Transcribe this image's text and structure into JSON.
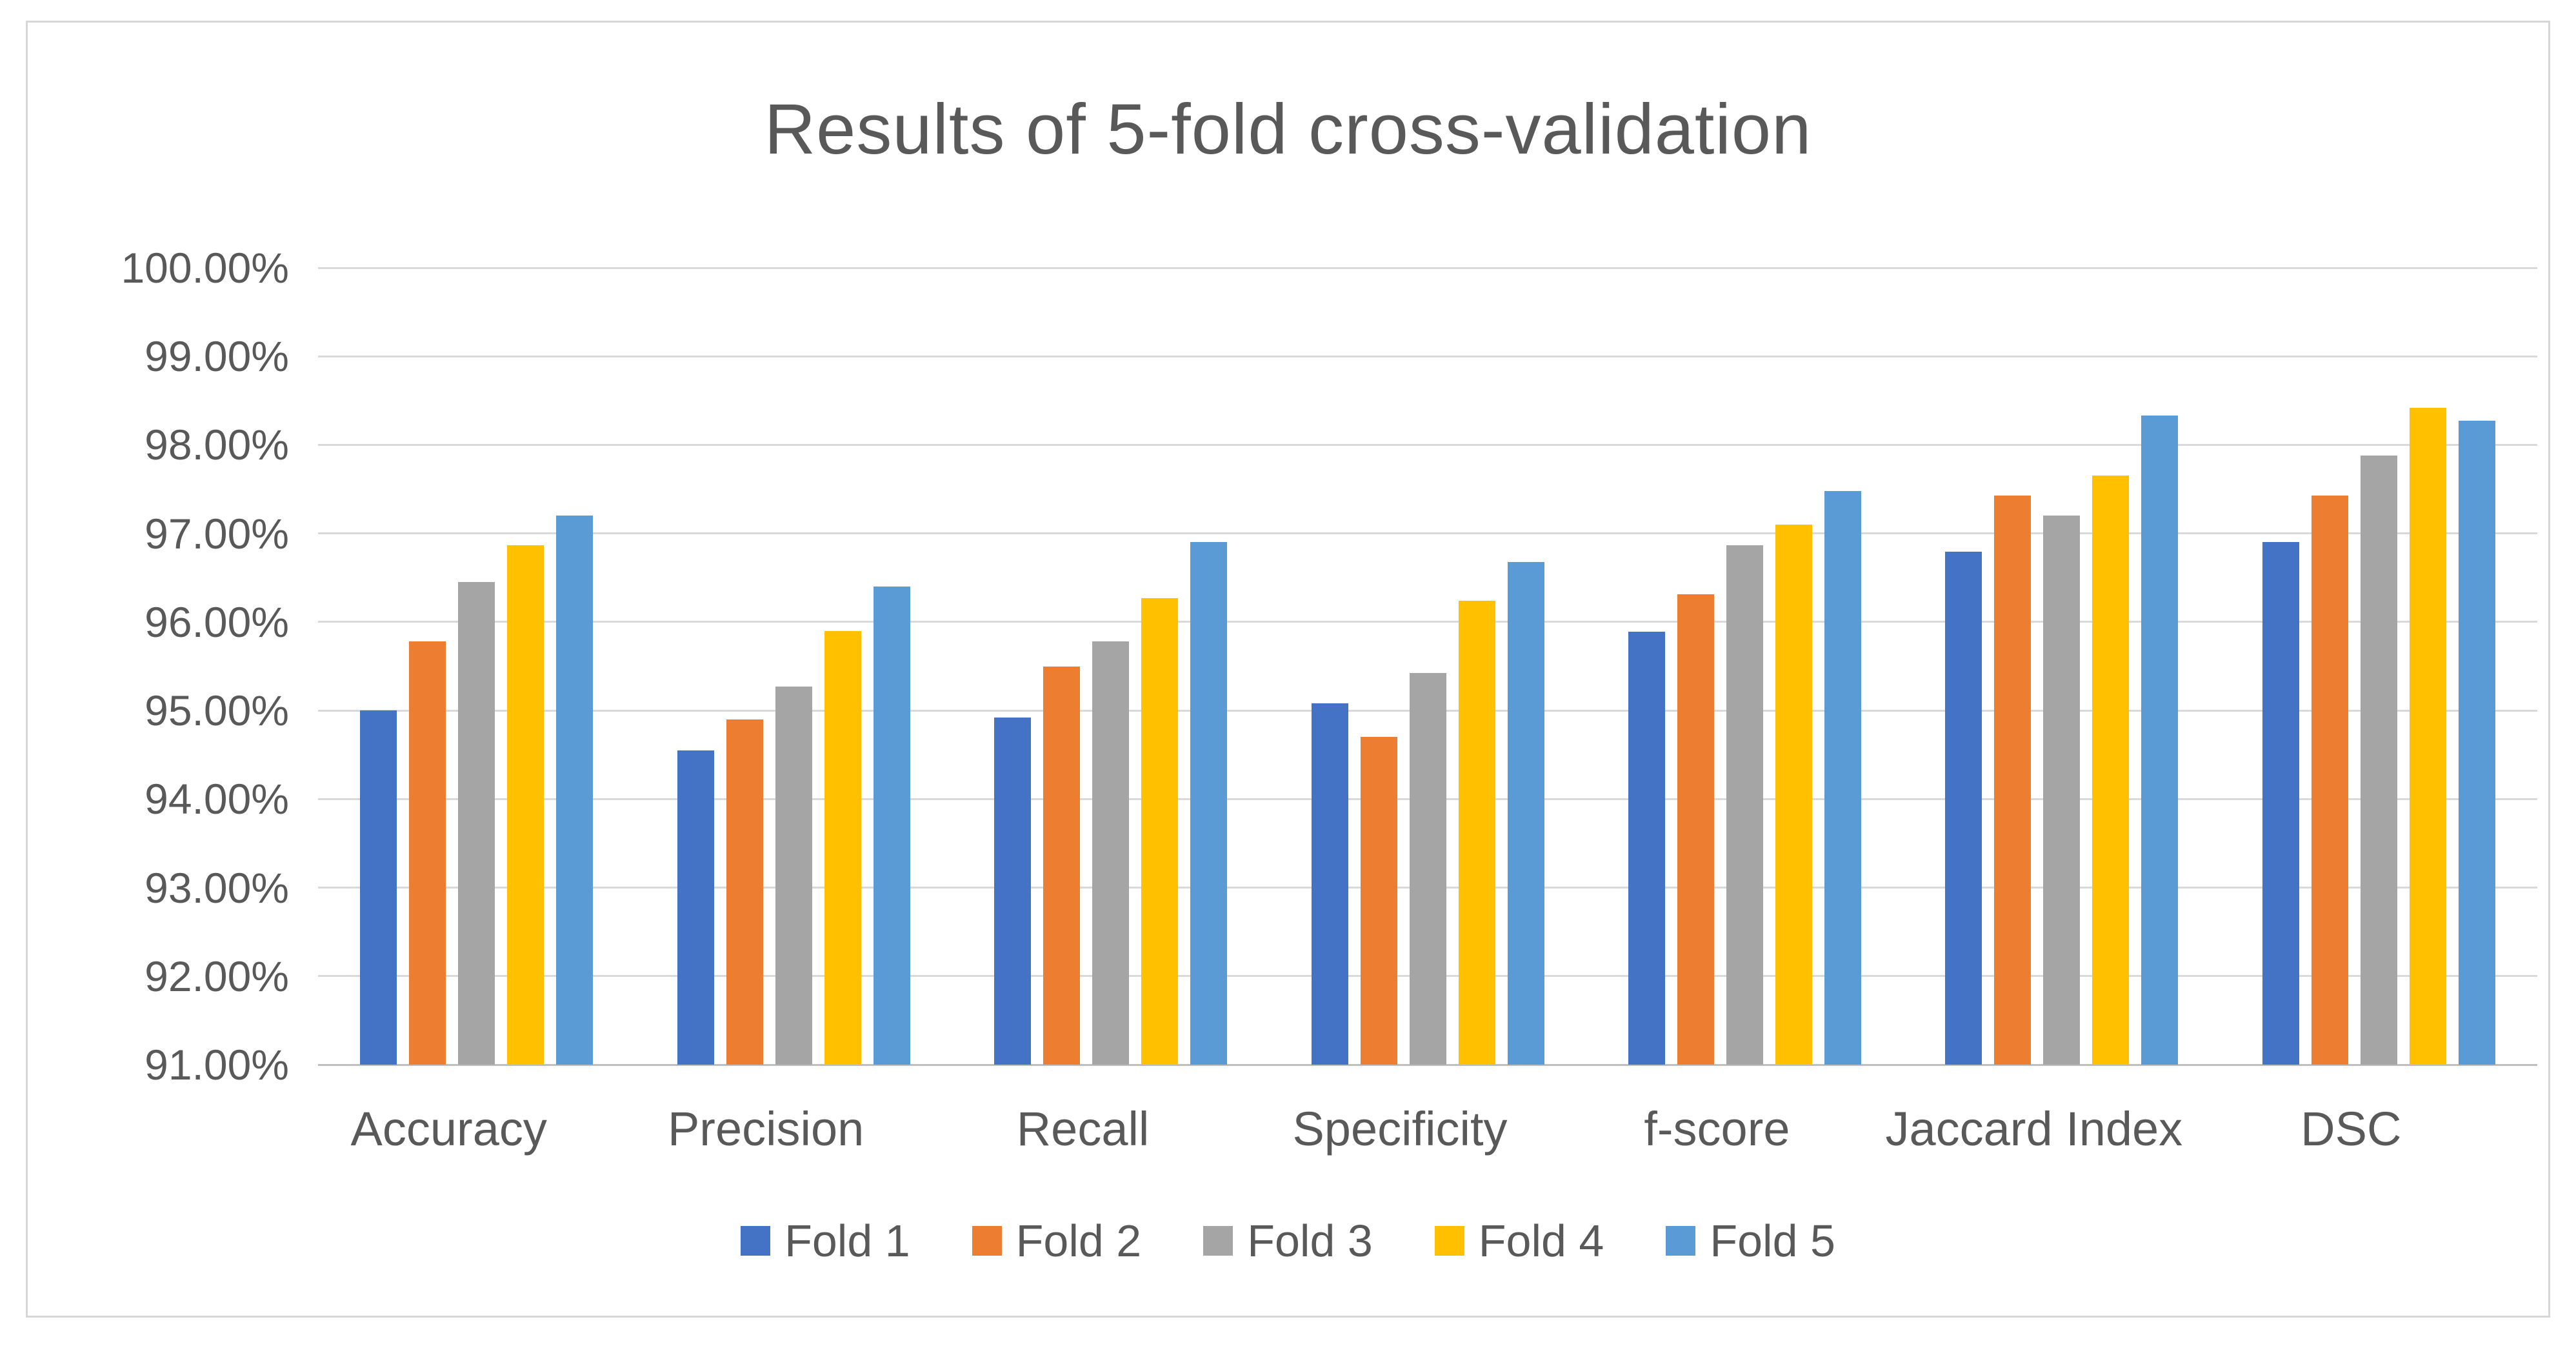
{
  "chart_data": {
    "type": "bar",
    "title": "Results of 5-fold cross-validation",
    "categories": [
      "Accuracy",
      "Precision",
      "Recall",
      "Specificity",
      "f-score",
      "Jaccard Index",
      "DSC"
    ],
    "series": [
      {
        "name": "Fold 1",
        "color": "#4472C4",
        "values": [
          95.0,
          94.55,
          94.92,
          95.08,
          95.89,
          96.79,
          96.9
        ]
      },
      {
        "name": "Fold 2",
        "color": "#ED7D31",
        "values": [
          95.78,
          94.9,
          95.5,
          94.7,
          96.31,
          97.43,
          97.43
        ]
      },
      {
        "name": "Fold 3",
        "color": "#A5A5A5",
        "values": [
          96.45,
          95.27,
          95.78,
          95.42,
          96.87,
          97.2,
          97.88
        ]
      },
      {
        "name": "Fold 4",
        "color": "#FFC000",
        "values": [
          96.87,
          95.9,
          96.27,
          96.24,
          97.1,
          97.65,
          98.42
        ]
      },
      {
        "name": "Fold 5",
        "color": "#5B9BD5",
        "values": [
          97.2,
          96.4,
          96.9,
          96.68,
          97.48,
          98.33,
          98.27
        ]
      }
    ],
    "y_axis": {
      "min": 91,
      "max": 100,
      "step": 1,
      "tick_labels": [
        "100.00%",
        "99.00%",
        "98.00%",
        "97.00%",
        "96.00%",
        "95.00%",
        "94.00%",
        "93.00%",
        "92.00%",
        "91.00%"
      ]
    },
    "xlabel": "",
    "ylabel": "",
    "legend_position": "bottom",
    "grid": true,
    "colors": {
      "gridline": "#D9D9D9",
      "axis_line": "#BFBFBF",
      "text": "#595959",
      "frame_border": "#D6D6D6",
      "background": "#FFFFFF"
    }
  }
}
